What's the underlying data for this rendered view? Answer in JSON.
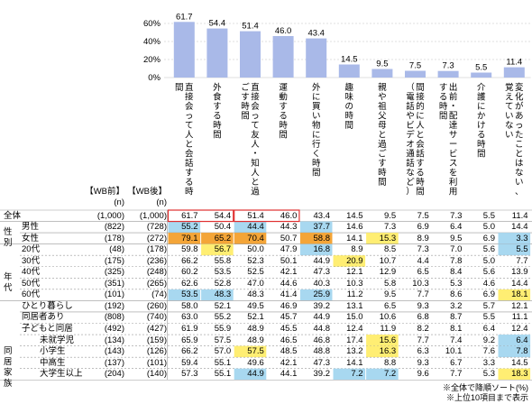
{
  "chart_data": {
    "type": "bar",
    "ylim": [
      0,
      70
    ],
    "yticks": [
      "0%",
      "20%",
      "40%",
      "60%"
    ],
    "grid": true,
    "categories": [
      "直接会って人と会話する時間",
      "外食する時間",
      "直接会って友人・知人と過ごす時間",
      "運動する時間",
      "外に買い物に行く時間",
      "趣味の時間",
      "親や祖父母と過ごす時間",
      "間接的に人と会話する時間（電話やビデオ通話など）",
      "出前・配達サービスを利用する時間",
      "介護にかける時間",
      "変化があったことはない、覚えていない"
    ],
    "values": [
      61.7,
      54.4,
      51.4,
      46.0,
      43.4,
      14.5,
      9.5,
      7.5,
      7.3,
      5.5,
      11.4
    ]
  },
  "table": {
    "header_before": "【WB前】",
    "header_after": "【WB後】",
    "header_n": "(n)",
    "groups": [
      {
        "label": "性別",
        "rows": [
          1,
          2
        ]
      },
      {
        "label": "年代",
        "rows": [
          3,
          8
        ]
      },
      {
        "label": "同居家族",
        "rows": [
          9,
          16
        ]
      }
    ],
    "rows": [
      {
        "label": "全体",
        "n_before": "(1,000)",
        "n_after": "(1,000)",
        "values": [
          "61.7",
          "54.4",
          "51.4",
          "46.0",
          "43.4",
          "14.5",
          "9.5",
          "7.5",
          "7.3",
          "5.5",
          "11.4"
        ]
      },
      {
        "label": "男性",
        "n_before": "(822)",
        "n_after": "(728)",
        "values": [
          "55.2",
          "50.4",
          "44.4",
          "44.3",
          "37.7",
          "14.6",
          "7.3",
          "6.9",
          "6.4",
          "5.0",
          "14.4"
        ]
      },
      {
        "label": "女性",
        "n_before": "(178)",
        "n_after": "(272)",
        "values": [
          "79.1",
          "65.2",
          "70.4",
          "50.7",
          "58.8",
          "14.1",
          "15.3",
          "8.9",
          "9.5",
          "6.9",
          "3.3"
        ]
      },
      {
        "label": "20代",
        "n_before": "(48)",
        "n_after": "(178)",
        "values": [
          "59.8",
          "56.7",
          "50.0",
          "47.9",
          "16.8",
          "8.9",
          "8.5",
          "7.3",
          "7.0",
          "5.6",
          "5.5"
        ]
      },
      {
        "label": "30代",
        "n_before": "(175)",
        "n_after": "(236)",
        "values": [
          "66.2",
          "55.8",
          "52.3",
          "50.1",
          "44.9",
          "20.9",
          "10.7",
          "4.4",
          "7.8",
          "5.0",
          "7.7"
        ]
      },
      {
        "label": "40代",
        "n_before": "(325)",
        "n_after": "(248)",
        "values": [
          "60.2",
          "53.5",
          "52.5",
          "42.1",
          "47.3",
          "12.1",
          "12.9",
          "6.5",
          "8.4",
          "5.6",
          "13.9"
        ]
      },
      {
        "label": "50代",
        "n_before": "(351)",
        "n_after": "(265)",
        "values": [
          "62.6",
          "52.8",
          "47.0",
          "44.6",
          "40.3",
          "10.3",
          "5.8",
          "10.3",
          "5.3",
          "4.6",
          "14.4"
        ]
      },
      {
        "label": "60代",
        "n_before": "(101)",
        "n_after": "(74)",
        "values": [
          "53.5",
          "48.3",
          "48.3",
          "41.4",
          "25.9",
          "11.2",
          "9.5",
          "7.7",
          "8.6",
          "6.9",
          "18.1"
        ]
      },
      {
        "label": "ひとり暮らし",
        "n_before": "(192)",
        "n_after": "(260)",
        "values": [
          "58.0",
          "52.1",
          "49.5",
          "46.9",
          "39.2",
          "13.1",
          "6.5",
          "9.3",
          "3.2",
          "5.7",
          "12.1"
        ]
      },
      {
        "label": "同居者あり",
        "n_before": "(808)",
        "n_after": "(740)",
        "values": [
          "63.0",
          "55.2",
          "52.1",
          "45.7",
          "44.9",
          "15.0",
          "10.6",
          "6.8",
          "8.7",
          "5.5",
          "11.1"
        ]
      },
      {
        "label": "子どもと同居",
        "n_before": "(492)",
        "n_after": "(427)",
        "values": [
          "61.9",
          "55.9",
          "48.9",
          "45.5",
          "44.8",
          "12.4",
          "11.9",
          "8.2",
          "8.1",
          "6.4",
          "12.4"
        ]
      },
      {
        "label": "未就学児",
        "n_before": "(134)",
        "n_after": "(159)",
        "values": [
          "65.9",
          "57.5",
          "48.9",
          "46.5",
          "46.8",
          "17.4",
          "15.6",
          "7.7",
          "7.4",
          "9.2",
          "6.4"
        ]
      },
      {
        "label": "小学生",
        "n_before": "(143)",
        "n_after": "(126)",
        "values": [
          "66.2",
          "57.0",
          "57.5",
          "48.5",
          "48.8",
          "13.2",
          "16.3",
          "6.3",
          "10.1",
          "7.6",
          "7.8"
        ]
      },
      {
        "label": "中高生",
        "n_before": "(137)",
        "n_after": "(101)",
        "values": [
          "59.4",
          "55.1",
          "49.6",
          "42.1",
          "47.3",
          "14.1",
          "8.8",
          "9.3",
          "6.7",
          "3.3",
          "14.5"
        ]
      },
      {
        "label": "大学生以上",
        "n_before": "(204)",
        "n_after": "(140)",
        "values": [
          "57.3",
          "55.1",
          "44.9",
          "44.1",
          "39.2",
          "7.2",
          "7.2",
          "9.6",
          "7.7",
          "5.3",
          "18.3"
        ]
      }
    ],
    "highlights": [
      {
        "row": 1,
        "col": 0,
        "level": "low"
      },
      {
        "row": 1,
        "col": 2,
        "level": "low"
      },
      {
        "row": 1,
        "col": 4,
        "level": "low"
      },
      {
        "row": 2,
        "col": 0,
        "level": "high"
      },
      {
        "row": 2,
        "col": 1,
        "level": "high"
      },
      {
        "row": 2,
        "col": 2,
        "level": "high"
      },
      {
        "row": 2,
        "col": 4,
        "level": "high"
      },
      {
        "row": 2,
        "col": 6,
        "level": "mid"
      },
      {
        "row": 2,
        "col": 10,
        "level": "low"
      },
      {
        "row": 3,
        "col": 1,
        "level": "mid"
      },
      {
        "row": 3,
        "col": 4,
        "level": "low"
      },
      {
        "row": 3,
        "col": 10,
        "level": "low"
      },
      {
        "row": 4,
        "col": 5,
        "level": "mid"
      },
      {
        "row": 7,
        "col": 0,
        "level": "low"
      },
      {
        "row": 7,
        "col": 1,
        "level": "low"
      },
      {
        "row": 7,
        "col": 4,
        "level": "low"
      },
      {
        "row": 7,
        "col": 10,
        "level": "mid"
      },
      {
        "row": 11,
        "col": 6,
        "level": "mid"
      },
      {
        "row": 11,
        "col": 10,
        "level": "low"
      },
      {
        "row": 12,
        "col": 2,
        "level": "mid"
      },
      {
        "row": 12,
        "col": 6,
        "level": "mid"
      },
      {
        "row": 12,
        "col": 10,
        "level": "low"
      },
      {
        "row": 14,
        "col": 2,
        "level": "low"
      },
      {
        "row": 14,
        "col": 5,
        "level": "low"
      },
      {
        "row": 14,
        "col": 6,
        "level": "low"
      },
      {
        "row": 14,
        "col": 10,
        "level": "mid"
      }
    ],
    "highlight_colors": {
      "high": "#f4a538",
      "mid": "#ffee73",
      "low": "#a8d8f0"
    }
  },
  "colors": {
    "bar": "#a9b9e8",
    "grid": "#bfbfbf",
    "box": "#e03030"
  },
  "notes": [
    "※全体で降順ソート(%)",
    "※上位10項目まで表示"
  ]
}
